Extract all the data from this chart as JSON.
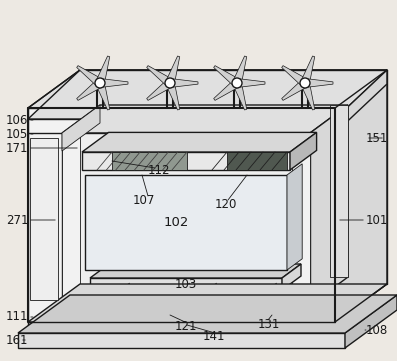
{
  "bg_color": "#ede9e3",
  "line_color": "#1a1a1a",
  "fill_light": "#f2f2f2",
  "fill_mid": "#d8d8d8",
  "fill_dark": "#b8b8b8",
  "fill_roof_top": "#e0e0e0",
  "fill_side": "#c8c8c8",
  "shade1": "#8a9088",
  "shade2": "#505850",
  "turbine_blade": "#c0c0c0",
  "label_fontsize": 8.5,
  "lw": 1.0,
  "lw_thick": 1.5,
  "lw_thin": 0.6
}
